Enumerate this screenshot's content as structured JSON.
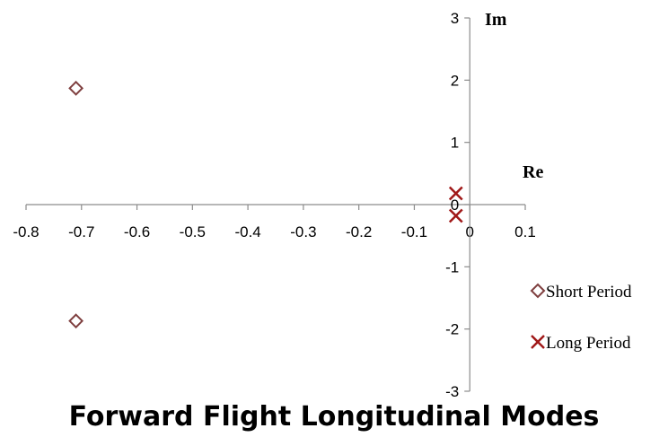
{
  "chart_data": {
    "type": "scatter",
    "title": "Forward Flight Longitudinal Modes",
    "xlabel": "Re",
    "ylabel": "Im",
    "xlim": [
      -0.8,
      0.1
    ],
    "ylim": [
      -3,
      3
    ],
    "x_ticks": [
      "-0.8",
      "-0.7",
      "-0.6",
      "-0.5",
      "-0.4",
      "-0.3",
      "-0.2",
      "-0.1",
      "0",
      "0.1"
    ],
    "y_ticks": [
      "3",
      "2",
      "1",
      "0",
      "-1",
      "-2",
      "-3"
    ],
    "grid": false,
    "legend_position": "right",
    "series": [
      {
        "name": "Short Period",
        "marker": "diamond",
        "color": "#7f3f3f",
        "points": [
          {
            "x": -0.71,
            "y": 1.87
          },
          {
            "x": -0.71,
            "y": -1.87
          }
        ]
      },
      {
        "name": "Long Period",
        "marker": "x",
        "color": "#a01818",
        "points": [
          {
            "x": -0.025,
            "y": 0.18
          },
          {
            "x": -0.025,
            "y": -0.18
          }
        ]
      }
    ]
  }
}
